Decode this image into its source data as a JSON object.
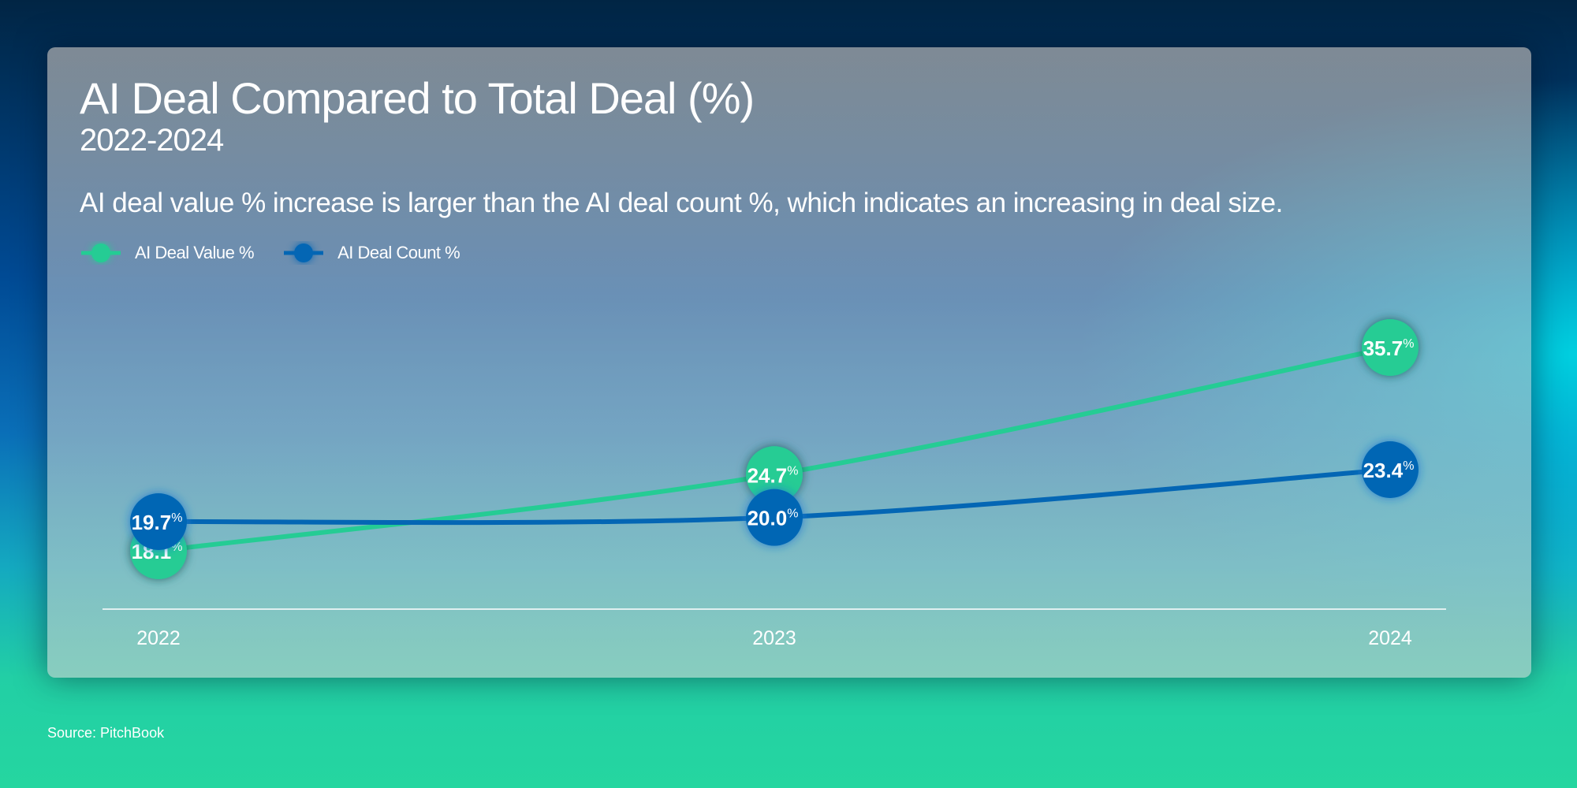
{
  "header": {
    "title": "AI Deal Compared to Total Deal (%)",
    "subtitle": "2022-2024",
    "description": "AI deal value % increase is larger than the AI deal count %, which indicates an increasing in deal size."
  },
  "source": "Source: PitchBook",
  "chart_data": {
    "type": "line",
    "title": "AI Deal Compared to Total Deal (%)",
    "subtitle": "2022-2024",
    "categories": [
      "2022",
      "2023",
      "2024"
    ],
    "series": [
      {
        "name": "AI Deal Value %",
        "values": [
          18.1,
          24.7,
          35.7
        ],
        "labels": [
          "18.1",
          "24.7",
          "35.7"
        ],
        "color": "#25cc94"
      },
      {
        "name": "AI Deal Count %",
        "values": [
          19.7,
          20.0,
          23.4
        ],
        "labels": [
          "19.7",
          "20.0",
          "23.4"
        ],
        "color": "#0466b4"
      }
    ],
    "unit": "%",
    "grid": false,
    "legend": "top-left"
  }
}
